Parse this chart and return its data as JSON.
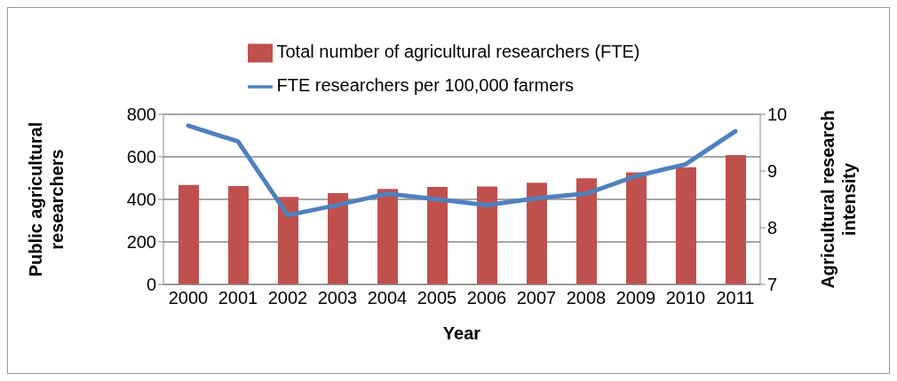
{
  "chart_data": {
    "type": "bar",
    "categories": [
      "2000",
      "2001",
      "2002",
      "2003",
      "2004",
      "2005",
      "2006",
      "2007",
      "2008",
      "2009",
      "2010",
      "2011"
    ],
    "series": [
      {
        "name": "Total number of agricultural researchers (FTE)",
        "color": "#c0504d",
        "values": [
          468,
          463,
          411,
          429,
          449,
          458,
          460,
          478,
          499,
          527,
          551,
          608
        ]
      },
      {
        "name": "FTE researchers per 100,000 farmers",
        "type": "line",
        "axis": "y2",
        "color": "#4f81bd",
        "values": [
          9.8,
          9.52,
          8.22,
          8.4,
          8.6,
          8.5,
          8.4,
          8.52,
          8.6,
          8.91,
          9.12,
          9.7
        ]
      }
    ],
    "xlabel": "Year",
    "ylabel": "Public agricultural researchers",
    "y2label": "Agricultural research intensity",
    "ylim": [
      0,
      800
    ],
    "yticks": [
      0,
      200,
      400,
      600,
      800
    ],
    "y2lim": [
      7,
      10
    ],
    "y2ticks": [
      7,
      8,
      9,
      10
    ],
    "grid": "y",
    "legend": "top",
    "marker": "none",
    "line_style": "solid"
  }
}
